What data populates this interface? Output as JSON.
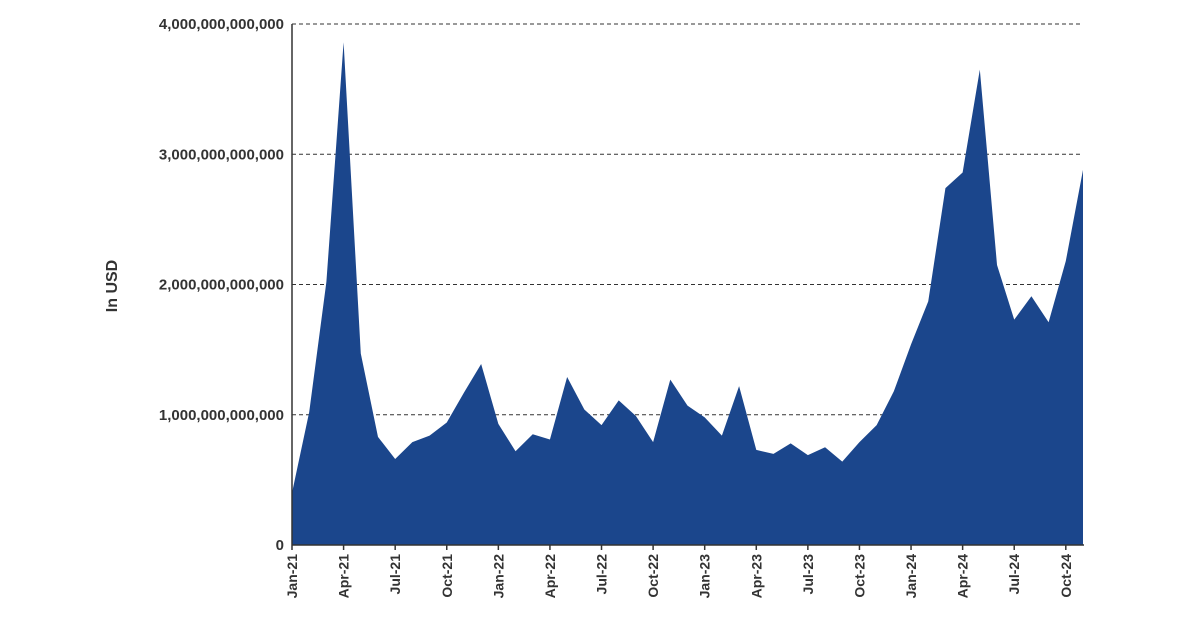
{
  "chart_data": {
    "type": "area",
    "title": "",
    "xlabel": "",
    "ylabel": "In USD",
    "ylim": [
      0,
      4000000000000
    ],
    "grid": true,
    "legend": "none",
    "colors": {
      "fill": "#1b468c",
      "text": "#333333"
    },
    "y_ticks": [
      {
        "value": 0,
        "label": "0"
      },
      {
        "value": 1000000000000,
        "label": "1,000,000,000,000"
      },
      {
        "value": 2000000000000,
        "label": "2,000,000,000,000"
      },
      {
        "value": 3000000000000,
        "label": "3,000,000,000,000"
      },
      {
        "value": 4000000000000,
        "label": "4,000,000,000,000"
      }
    ],
    "x_ticks": [
      {
        "index": 0,
        "label": "Jan-21"
      },
      {
        "index": 3,
        "label": "Apr-21"
      },
      {
        "index": 6,
        "label": "Jul-21"
      },
      {
        "index": 9,
        "label": "Oct-21"
      },
      {
        "index": 12,
        "label": "Jan-22"
      },
      {
        "index": 15,
        "label": "Apr-22"
      },
      {
        "index": 18,
        "label": "Jul-22"
      },
      {
        "index": 21,
        "label": "Oct-22"
      },
      {
        "index": 24,
        "label": "Jan-23"
      },
      {
        "index": 27,
        "label": "Apr-23"
      },
      {
        "index": 30,
        "label": "Jul-23"
      },
      {
        "index": 33,
        "label": "Oct-23"
      },
      {
        "index": 36,
        "label": "Jan-24"
      },
      {
        "index": 39,
        "label": "Apr-24"
      },
      {
        "index": 42,
        "label": "Jul-24"
      },
      {
        "index": 45,
        "label": "Oct-24"
      }
    ],
    "categories": [
      "Jan-21",
      "Feb-21",
      "Mar-21",
      "Apr-21",
      "May-21",
      "Jun-21",
      "Jul-21",
      "Aug-21",
      "Sep-21",
      "Oct-21",
      "Nov-21",
      "Dec-21",
      "Jan-22",
      "Feb-22",
      "Mar-22",
      "Apr-22",
      "May-22",
      "Jun-22",
      "Jul-22",
      "Aug-22",
      "Sep-22",
      "Oct-22",
      "Nov-22",
      "Dec-22",
      "Jan-23",
      "Feb-23",
      "Mar-23",
      "Apr-23",
      "May-23",
      "Jun-23",
      "Jul-23",
      "Aug-23",
      "Sep-23",
      "Oct-23",
      "Nov-23",
      "Dec-23",
      "Jan-24",
      "Feb-24",
      "Mar-24",
      "Apr-24",
      "May-24",
      "Jun-24",
      "Jul-24",
      "Aug-24",
      "Sep-24",
      "Oct-24",
      "Nov-24"
    ],
    "values": [
      400000000000,
      1020000000000,
      2020000000000,
      3860000000000,
      1470000000000,
      830000000000,
      660000000000,
      790000000000,
      840000000000,
      940000000000,
      1170000000000,
      1390000000000,
      930000000000,
      720000000000,
      850000000000,
      810000000000,
      1290000000000,
      1040000000000,
      920000000000,
      1110000000000,
      990000000000,
      790000000000,
      1270000000000,
      1070000000000,
      980000000000,
      840000000000,
      1220000000000,
      730000000000,
      700000000000,
      780000000000,
      690000000000,
      750000000000,
      640000000000,
      790000000000,
      920000000000,
      1180000000000,
      1540000000000,
      1870000000000,
      2740000000000,
      2860000000000,
      3650000000000,
      2150000000000,
      1730000000000,
      1910000000000,
      1710000000000,
      2180000000000,
      2880000000000
    ]
  }
}
